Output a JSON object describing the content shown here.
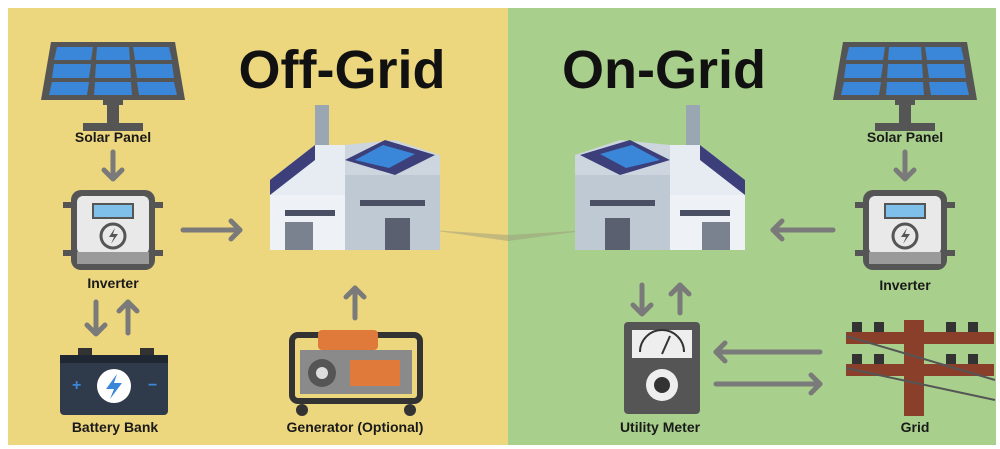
{
  "off_grid": {
    "title": "Off-Grid",
    "nodes": [
      {
        "label": "Solar Panel"
      },
      {
        "label": "Inverter"
      },
      {
        "label": "Battery Bank"
      },
      {
        "label": "Generator (Optional)"
      }
    ]
  },
  "on_grid": {
    "title": "On-Grid",
    "nodes": [
      {
        "label": "Solar Panel"
      },
      {
        "label": "Inverter"
      },
      {
        "label": "Utility Meter"
      },
      {
        "label": "Grid"
      }
    ]
  }
}
